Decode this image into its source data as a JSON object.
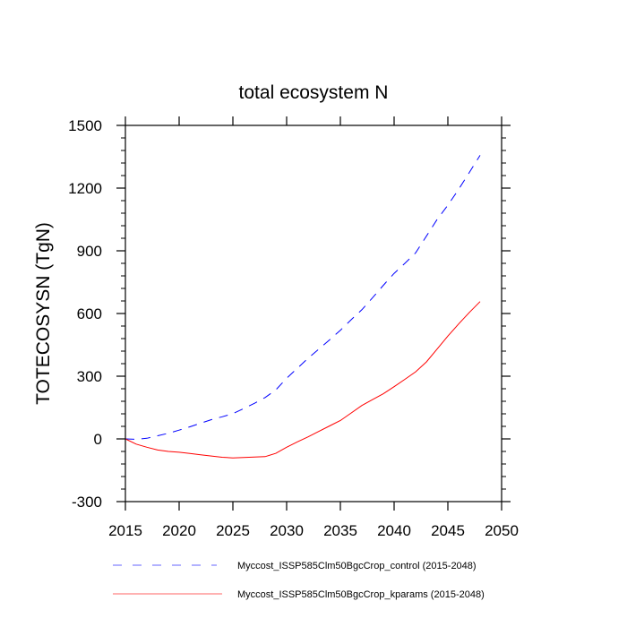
{
  "chart_data": {
    "type": "line",
    "title": "total ecosystem N",
    "xlabel": "",
    "ylabel": "TOTECOSYSN  (TgN)",
    "xlim": [
      2015,
      2050
    ],
    "ylim": [
      -300,
      1500
    ],
    "xticks": [
      2015,
      2020,
      2025,
      2030,
      2035,
      2040,
      2045,
      2050
    ],
    "xtick_labels": [
      "2015",
      "2020",
      "2025",
      "2030",
      "2035",
      "2040",
      "2045",
      "2050"
    ],
    "yticks": [
      -300,
      0,
      300,
      600,
      900,
      1200,
      1500
    ],
    "ytick_labels": [
      "-300",
      "0",
      "300",
      "600",
      "900",
      "1200",
      "1500"
    ],
    "grid": false,
    "legend_position": "bottom",
    "x": [
      2015,
      2016,
      2017,
      2018,
      2019,
      2020,
      2021,
      2022,
      2023,
      2024,
      2025,
      2026,
      2027,
      2028,
      2029,
      2030,
      2031,
      2032,
      2033,
      2034,
      2035,
      2036,
      2037,
      2038,
      2039,
      2040,
      2041,
      2042,
      2043,
      2044,
      2045,
      2046,
      2047,
      2048
    ],
    "series": [
      {
        "name": "Myccost_ISSP585Clm50BgcCrop_control (2015-2048)",
        "color": "#0000ff",
        "dash": "dashed",
        "values": [
          0,
          -2,
          3,
          15,
          27,
          42,
          58,
          75,
          92,
          106,
          121,
          145,
          170,
          198,
          235,
          290,
          338,
          386,
          430,
          474,
          520,
          570,
          618,
          676,
          735,
          792,
          840,
          890,
          970,
          1050,
          1118,
          1194,
          1275,
          1357
        ]
      },
      {
        "name": "Myccost_ISSP585Clm50BgcCrop_kparams (2015-2048)",
        "color": "#ff0000",
        "dash": "solid",
        "values": [
          0,
          -25,
          -40,
          -53,
          -60,
          -64,
          -70,
          -76,
          -82,
          -88,
          -91,
          -89,
          -87,
          -85,
          -69,
          -40,
          -14,
          10,
          36,
          62,
          88,
          124,
          160,
          188,
          216,
          250,
          285,
          321,
          368,
          430,
          492,
          550,
          605,
          657
        ]
      }
    ]
  }
}
